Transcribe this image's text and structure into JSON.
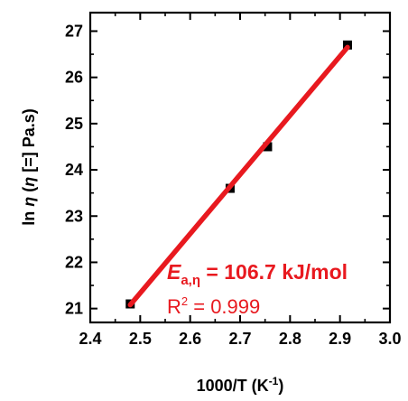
{
  "chart_data": {
    "type": "scatter",
    "xlabel_main": "1000/T (K",
    "xlabel_sup": "-1",
    "xlabel_end": ")",
    "ylabel_main": "ln ",
    "ylabel_eta": "η",
    "ylabel_rest": "  (",
    "ylabel_eta2": "η",
    "ylabel_end": " [=] Pa.s)",
    "xlim": [
      2.4,
      3.0
    ],
    "ylim": [
      20.7,
      27.4
    ],
    "x_ticks": [
      "2.4",
      "2.5",
      "2.6",
      "2.7",
      "2.8",
      "2.9",
      "3.0"
    ],
    "y_ticks": [
      "21",
      "22",
      "23",
      "24",
      "25",
      "26",
      "27"
    ],
    "points": [
      {
        "x": 2.48,
        "y": 21.1
      },
      {
        "x": 2.68,
        "y": 23.6
      },
      {
        "x": 2.755,
        "y": 24.5
      },
      {
        "x": 2.915,
        "y": 26.7
      }
    ],
    "fit_line": {
      "x": [
        2.48,
        2.915
      ],
      "y": [
        21.08,
        26.65
      ],
      "color": "#e8191f"
    },
    "marker_color": "#000000",
    "annotation_ea": {
      "E": "E",
      "sub": "a,η",
      "rest": " = 106.7 kJ/mol"
    },
    "annotation_r2": {
      "R": "R",
      "sup": "2",
      "rest": " = 0.999"
    }
  }
}
